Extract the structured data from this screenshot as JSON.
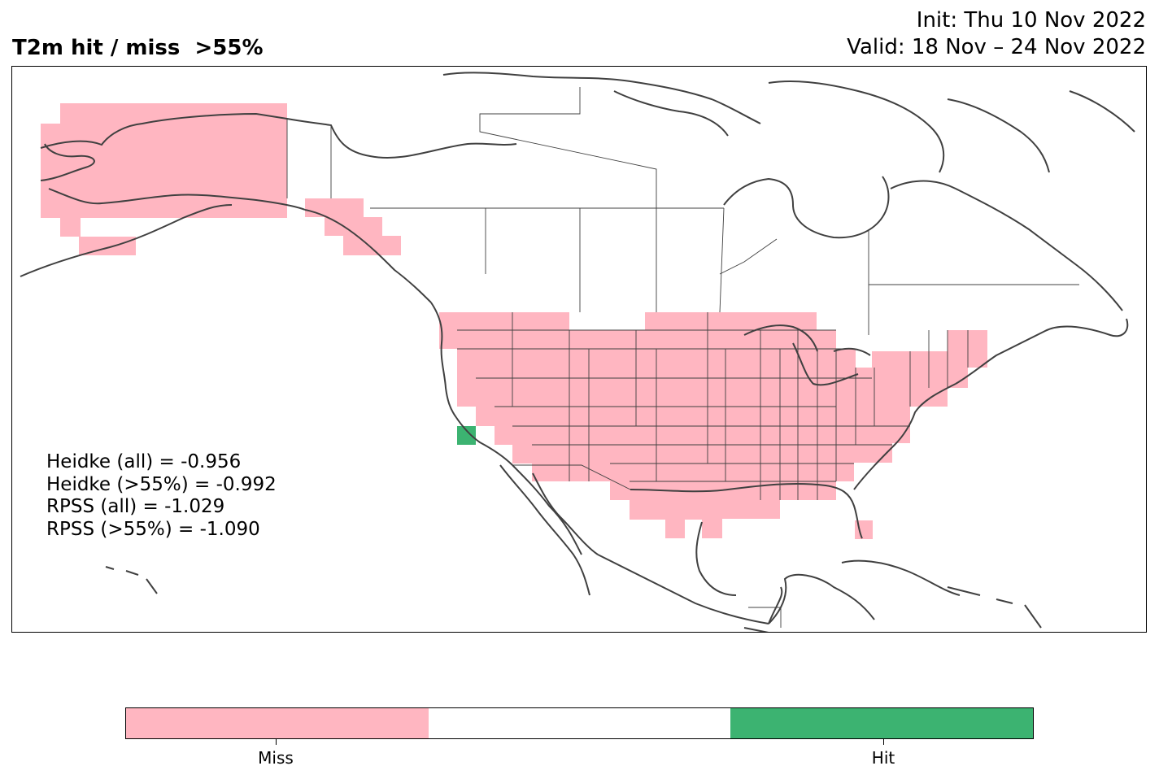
{
  "title": "T2m hit / miss  >55%",
  "init": "Init: Thu 10 Nov 2022",
  "valid": "Valid: 18 Nov – 24 Nov 2022",
  "scores": [
    "Heidke (all) = -0.956",
    "Heidke (>55%) = -0.992",
    "RPSS (all) = -1.029",
    "RPSS (>55%) = -1.090"
  ],
  "colorbar": {
    "colors": [
      "#ffb6c1",
      "#ffffff",
      "#3cb371"
    ],
    "labels": [
      "Miss",
      "Hit"
    ]
  },
  "colors": {
    "miss": "#ffb6c1",
    "hit": "#3cb371",
    "coastline": "#404040"
  }
}
